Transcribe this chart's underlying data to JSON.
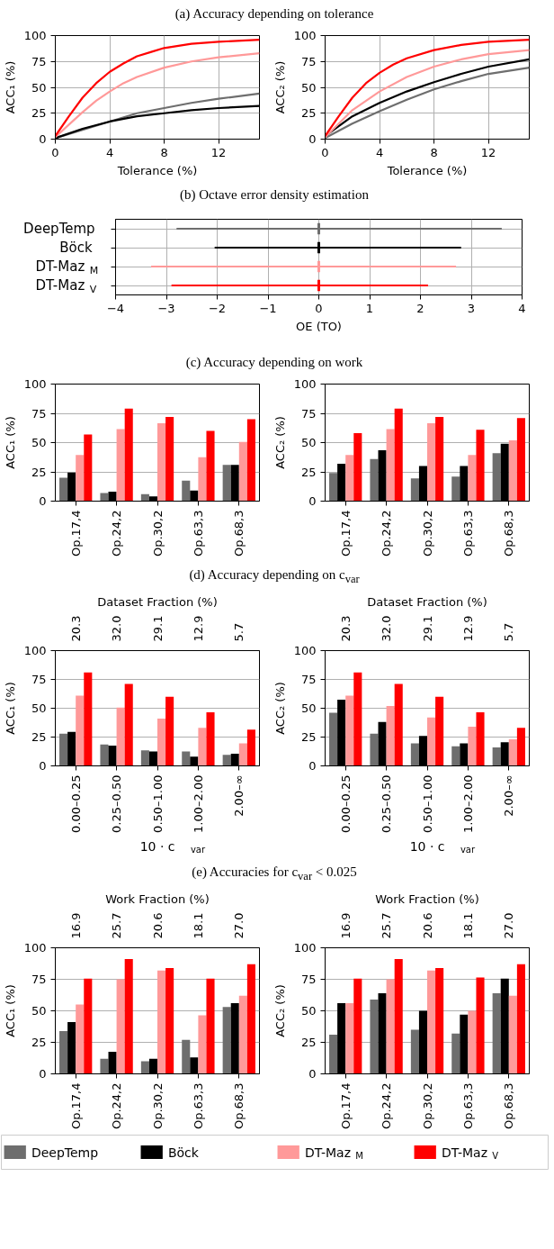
{
  "chart_data": [
    {
      "type": "line",
      "title": "(a) Accuracy depending on tolerance",
      "xlabel": "Tolerance (%)",
      "ylabel": "ACC₁ (%)",
      "xlim": [
        0,
        15
      ],
      "xticks": [
        0,
        4,
        8,
        12
      ],
      "ylim": [
        0,
        100
      ],
      "yticks": [
        0,
        25,
        50,
        75,
        100
      ],
      "grid": true,
      "series": [
        {
          "color": "#6e6e6e",
          "x": [
            0,
            2,
            4,
            6,
            8,
            10,
            12,
            15
          ],
          "values": [
            1,
            9,
            17,
            25,
            30,
            35,
            39,
            44
          ]
        },
        {
          "color": "#000000",
          "x": [
            0,
            2,
            4,
            6,
            8,
            10,
            12,
            15
          ],
          "values": [
            1,
            10,
            17,
            22,
            25,
            28,
            30,
            32
          ]
        },
        {
          "color": "#ff9999",
          "x": [
            0,
            1,
            2,
            3,
            4,
            5,
            6,
            8,
            10,
            12,
            15
          ],
          "values": [
            2,
            14,
            26,
            37,
            46,
            54,
            60,
            69,
            75,
            79,
            83
          ]
        },
        {
          "color": "#ff0000",
          "x": [
            0,
            1,
            2,
            3,
            4,
            5,
            6,
            7,
            8,
            10,
            12,
            15
          ],
          "values": [
            3,
            22,
            40,
            54,
            65,
            73,
            80,
            84,
            88,
            92,
            94,
            96
          ]
        }
      ]
    },
    {
      "type": "line",
      "xlabel": "Tolerance (%)",
      "ylabel": "ACC₂ (%)",
      "xlim": [
        0,
        15
      ],
      "xticks": [
        0,
        4,
        8,
        12
      ],
      "ylim": [
        0,
        100
      ],
      "yticks": [
        0,
        25,
        50,
        75,
        100
      ],
      "grid": true,
      "series": [
        {
          "color": "#6e6e6e",
          "x": [
            0,
            2,
            4,
            6,
            8,
            10,
            12,
            15
          ],
          "values": [
            1,
            15,
            27,
            38,
            48,
            56,
            63,
            69
          ]
        },
        {
          "color": "#000000",
          "x": [
            0,
            2,
            4,
            6,
            8,
            10,
            12,
            15
          ],
          "values": [
            3,
            22,
            35,
            46,
            55,
            63,
            70,
            77
          ]
        },
        {
          "color": "#ff9999",
          "x": [
            0,
            2,
            4,
            6,
            8,
            10,
            12,
            15
          ],
          "values": [
            2,
            28,
            46,
            60,
            70,
            77,
            82,
            86
          ]
        },
        {
          "color": "#ff0000",
          "x": [
            0,
            1,
            2,
            3,
            4,
            5,
            6,
            8,
            10,
            12,
            15
          ],
          "values": [
            3,
            22,
            40,
            54,
            64,
            72,
            78,
            86,
            91,
            94,
            96
          ]
        }
      ]
    },
    {
      "type": "box",
      "orientation": "horizontal",
      "title": "(b) Octave error density estimation",
      "xlabel": "OE (TO)",
      "xlim": [
        -4,
        4
      ],
      "xticks": [
        {
          "value": -4,
          "label": "−4"
        },
        {
          "value": -3,
          "label": "−3"
        },
        {
          "value": -2,
          "label": "−2"
        },
        {
          "value": -1,
          "label": "−1"
        },
        0,
        1,
        2,
        3,
        4
      ],
      "grid": true,
      "categories": [
        "DeepTemp",
        "Böck",
        "DT-Maz$_{M}$",
        "DT-Maz$_{V}$"
      ],
      "colors": [
        "#6e6e6e",
        "#000000",
        "#ff9999",
        "#ff0000"
      ],
      "boxes": [
        {
          "low": -2.8,
          "q1": 0,
          "median": 0,
          "q3": 0,
          "high": 3.6
        },
        {
          "low": -2.05,
          "q1": 0,
          "median": 0,
          "q3": 0,
          "high": 2.8
        },
        {
          "low": -3.3,
          "q1": 0,
          "median": 0,
          "q3": 0,
          "high": 2.7
        },
        {
          "low": -2.9,
          "q1": 0,
          "median": 0,
          "q3": 0,
          "high": 2.15
        }
      ]
    },
    {
      "type": "bar",
      "title": "(c) Accuracy depending on work",
      "ylabel": "ACC₁ (%)",
      "ylim": [
        0,
        100
      ],
      "yticks": [
        0,
        25,
        50,
        75,
        100
      ],
      "grid": "y",
      "categories": [
        "Op.17,4",
        "Op.24,2",
        "Op.30,2",
        "Op.63,3",
        "Op.68,3"
      ],
      "series": [
        {
          "color": "#6e6e6e",
          "values": [
            20,
            7,
            6,
            17.5,
            31
          ]
        },
        {
          "color": "#000000",
          "values": [
            24.5,
            8,
            4,
            9,
            31
          ]
        },
        {
          "color": "#ff9999",
          "values": [
            39.5,
            61.5,
            66.5,
            37.5,
            50.5
          ]
        },
        {
          "color": "#ff0000",
          "values": [
            57,
            79,
            72,
            60,
            70
          ]
        }
      ]
    },
    {
      "type": "bar",
      "ylabel": "ACC₂ (%)",
      "ylim": [
        0,
        100
      ],
      "yticks": [
        0,
        25,
        50,
        75,
        100
      ],
      "grid": "y",
      "categories": [
        "Op.17,4",
        "Op.24,2",
        "Op.30,2",
        "Op.63,3",
        "Op.68,3"
      ],
      "series": [
        {
          "color": "#6e6e6e",
          "values": [
            24,
            36,
            19.5,
            21,
            41
          ]
        },
        {
          "color": "#000000",
          "values": [
            32,
            43.5,
            30,
            30,
            49
          ]
        },
        {
          "color": "#ff9999",
          "values": [
            39.5,
            61.5,
            66.5,
            39.5,
            52
          ]
        },
        {
          "color": "#ff0000",
          "values": [
            58,
            79,
            72,
            61,
            71
          ]
        }
      ]
    },
    {
      "type": "bar",
      "title": "(d) Accuracy depending on c$_{var}$",
      "ylabel": "ACC₁ (%)",
      "xlabel": "10 · c$_{var}$",
      "x2label": "Dataset Fraction (%)",
      "ylim": [
        0,
        100
      ],
      "yticks": [
        0,
        25,
        50,
        75,
        100
      ],
      "grid": "y",
      "categories": [
        "0.00–0.25",
        "0.25–0.50",
        "0.50–1.00",
        "1.00–2.00",
        "2.00–∞"
      ],
      "annotations": [
        "20.3",
        "32.0",
        "29.1",
        "12.9",
        "5.7"
      ],
      "series": [
        {
          "color": "#6e6e6e",
          "values": [
            28,
            18.5,
            13.5,
            12.5,
            9.5
          ]
        },
        {
          "color": "#000000",
          "values": [
            29.5,
            17.5,
            12.5,
            8,
            10.5
          ]
        },
        {
          "color": "#ff9999",
          "values": [
            61,
            50.5,
            41,
            33,
            19.5
          ]
        },
        {
          "color": "#ff0000",
          "values": [
            81,
            71,
            60,
            46.5,
            31.5
          ]
        }
      ]
    },
    {
      "type": "bar",
      "ylabel": "ACC₂ (%)",
      "xlabel": "10 · c$_{var}$",
      "x2label": "Dataset Fraction (%)",
      "ylim": [
        0,
        100
      ],
      "yticks": [
        0,
        25,
        50,
        75,
        100
      ],
      "grid": "y",
      "categories": [
        "0.00–0.25",
        "0.25–0.50",
        "0.50–1.00",
        "1.00–2.00",
        "2.00–∞"
      ],
      "annotations": [
        "20.3",
        "32.0",
        "29.1",
        "12.9",
        "5.7"
      ],
      "series": [
        {
          "color": "#6e6e6e",
          "values": [
            46,
            28,
            19.5,
            17,
            16
          ]
        },
        {
          "color": "#000000",
          "values": [
            57.5,
            38,
            26,
            19.5,
            20.5
          ]
        },
        {
          "color": "#ff9999",
          "values": [
            61,
            52,
            42,
            34,
            23
          ]
        },
        {
          "color": "#ff0000",
          "values": [
            81,
            71,
            60,
            46.5,
            33
          ]
        }
      ]
    },
    {
      "type": "bar",
      "title": "(e) Accuracies for c$_{var}$ < 0.025",
      "ylabel": "ACC₁ (%)",
      "x2label": "Work Fraction (%)",
      "ylim": [
        0,
        100
      ],
      "yticks": [
        0,
        25,
        50,
        75,
        100
      ],
      "grid": "y",
      "categories": [
        "Op.17,4",
        "Op.24,2",
        "Op.30,2",
        "Op.63,3",
        "Op.68,3"
      ],
      "annotations": [
        "16.9",
        "25.7",
        "20.6",
        "18.1",
        "27.0"
      ],
      "series": [
        {
          "color": "#6e6e6e",
          "values": [
            34,
            12,
            10,
            27,
            53
          ]
        },
        {
          "color": "#000000",
          "values": [
            41,
            17.5,
            12,
            13,
            56
          ]
        },
        {
          "color": "#ff9999",
          "values": [
            55,
            75,
            82,
            46.5,
            62
          ]
        },
        {
          "color": "#ff0000",
          "values": [
            75.5,
            91,
            84,
            75.5,
            87
          ]
        }
      ]
    },
    {
      "type": "bar",
      "ylabel": "ACC₂ (%)",
      "x2label": "Work Fraction (%)",
      "ylim": [
        0,
        100
      ],
      "yticks": [
        0,
        25,
        50,
        75,
        100
      ],
      "grid": "y",
      "legend": "bottom",
      "categories": [
        "Op.17,4",
        "Op.24,2",
        "Op.30,2",
        "Op.63,3",
        "Op.68,3"
      ],
      "annotations": [
        "16.9",
        "25.7",
        "20.6",
        "18.1",
        "27.0"
      ],
      "series": [
        {
          "name": "DeepTemp",
          "color": "#6e6e6e",
          "values": [
            31,
            59,
            35,
            32,
            64
          ]
        },
        {
          "name": "Böck",
          "color": "#000000",
          "values": [
            56,
            64,
            50,
            47,
            75.5
          ]
        },
        {
          "name": "DT-Maz$_{M}$",
          "color": "#ff9999",
          "values": [
            56,
            75,
            82,
            50,
            62
          ]
        },
        {
          "name": "DT-Maz$_{V}$",
          "color": "#ff0000",
          "values": [
            75.5,
            91,
            84,
            76.5,
            87
          ]
        }
      ]
    }
  ]
}
